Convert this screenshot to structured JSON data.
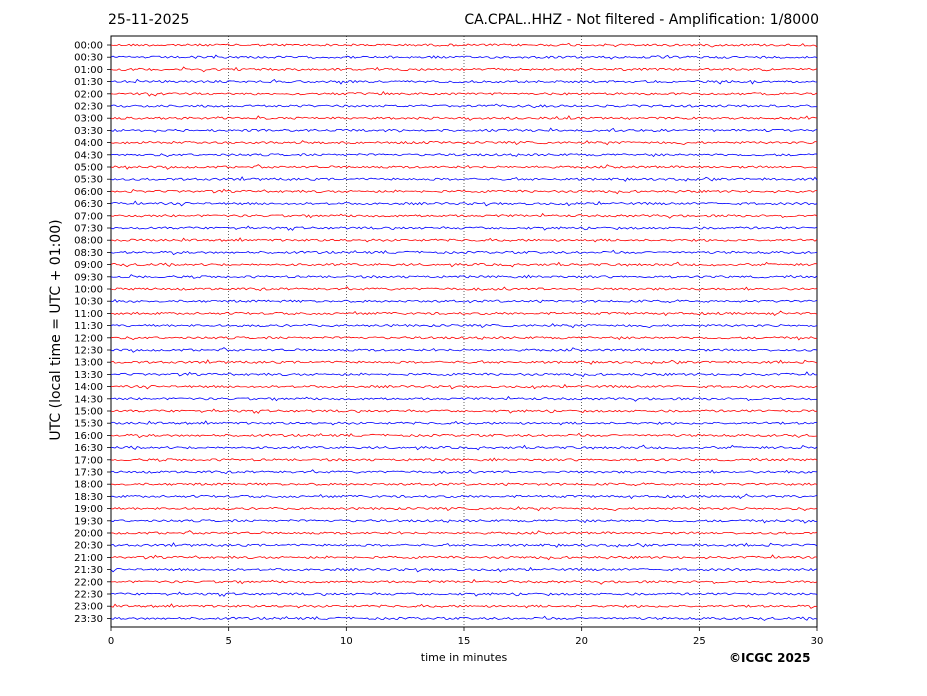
{
  "header": {
    "date": "25-11-2025",
    "title": "CA.CPAL..HHZ - Not filtered - Amplification: 1/8000"
  },
  "footer": {
    "copyright": "©ICGC 2025"
  },
  "chart_data": {
    "type": "line",
    "ylabel": "UTC (local time = UTC + 01:00)",
    "xlabel": "time in minutes",
    "xlim": [
      0,
      30
    ],
    "x_ticks": [
      0,
      5,
      10,
      15,
      20,
      25,
      30
    ],
    "x_grid": "dotted vertical lines at 5-minute ticks",
    "row_labels": [
      "00:00",
      "00:30",
      "01:00",
      "01:30",
      "02:00",
      "02:30",
      "03:00",
      "03:30",
      "04:00",
      "04:30",
      "05:00",
      "05:30",
      "06:00",
      "06:30",
      "07:00",
      "07:30",
      "08:00",
      "08:30",
      "09:00",
      "09:30",
      "10:00",
      "10:30",
      "11:00",
      "11:30",
      "12:00",
      "12:30",
      "13:00",
      "13:30",
      "14:00",
      "14:30",
      "15:00",
      "15:30",
      "16:00",
      "16:30",
      "17:00",
      "17:30",
      "18:00",
      "18:30",
      "19:00",
      "19:30",
      "20:00",
      "20:30",
      "21:00",
      "21:30",
      "22:00",
      "22:30",
      "23:00",
      "23:30"
    ],
    "trace_colors": [
      "#ff0000",
      "#0000ff"
    ],
    "trace_pattern": "alternating red/blue helicorder traces, one per 30-minute row, low-amplitude background noise"
  }
}
